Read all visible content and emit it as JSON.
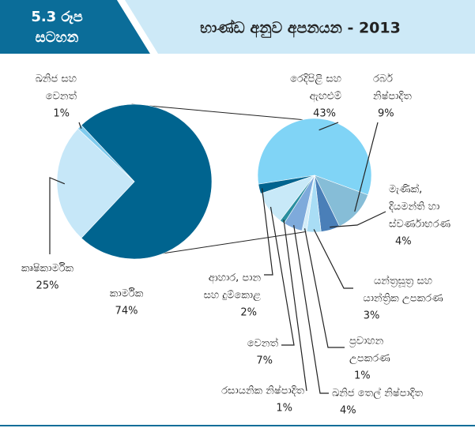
{
  "chart_data": {
    "type": "pie-of-pie",
    "figure_label": [
      "5.3 රූප",
      "සටහන"
    ],
    "title": "භාණ්ඩ අනුව අපනයන - 2013",
    "pie": {
      "labels": [
        [
          "කාර්මික"
        ],
        [
          "කෘෂිකාර්මික"
        ],
        [
          "ඛනිජ සහ",
          "වෙනත්"
        ]
      ],
      "values": [
        74,
        25,
        1
      ],
      "value_labels": [
        "74%",
        "25%",
        "1%"
      ],
      "colors": [
        "#00648f",
        "#c6e7f8",
        "#7fcbee"
      ]
    },
    "subpie": {
      "labels": [
        [
          "රෙදිපිළි සහ",
          "ඇඟළුම්"
        ],
        [
          "රබර්",
          "නිෂ්පාදිත"
        ],
        [
          "මැණික්,",
          "දියමන්ති හා",
          "ස්වර්ණාභරණ"
        ],
        [
          "යන්ත්‍රසූත්‍ර සහ",
          "යාන්ත්‍රික උපකරණ"
        ],
        [
          "ප්‍රවාහන",
          "උපකරණ"
        ],
        [
          "ඛනිජ තෙල් නිෂ්පාදිත"
        ],
        [
          "රසායනික නිෂ්පාදිත"
        ],
        [
          "වෙනත්"
        ],
        [
          "ආහාර, පාන",
          "සහ දුම්කොළ"
        ]
      ],
      "values": [
        43,
        9,
        4,
        3,
        1,
        4,
        1,
        7,
        2
      ],
      "value_labels": [
        "43%",
        "9%",
        "4%",
        "3%",
        "1%",
        "4%",
        "1%",
        "7%",
        "2%"
      ],
      "colors": [
        "#80d4f6",
        "#86bdd7",
        "#4a7fb8",
        "#a9ddf5",
        "#d2edf9",
        "#7eaadb",
        "#2a8fa0",
        "#c8e9f8",
        "#00648f"
      ]
    }
  }
}
